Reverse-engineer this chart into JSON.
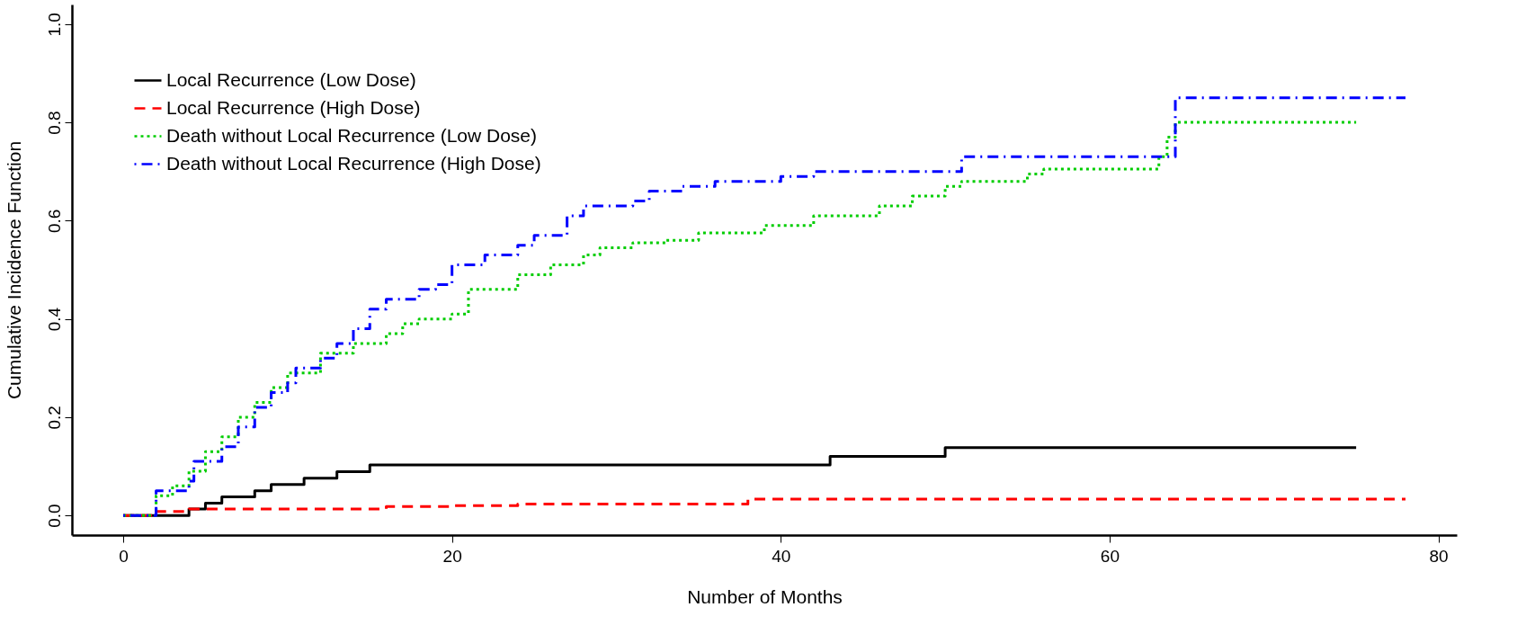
{
  "chart_data": {
    "type": "step",
    "xlabel": "Number of Months",
    "ylabel": "Cumulative Incidence Function",
    "xlim": [
      -3.12,
      81.12
    ],
    "ylim": [
      -0.04,
      1.04
    ],
    "xticks": [
      0,
      20,
      40,
      60,
      80
    ],
    "yticks": [
      {
        "value": 0,
        "label": "0.0"
      },
      0.2,
      0.4,
      0.6,
      0.8,
      {
        "value": 1,
        "label": "1.0"
      }
    ],
    "grid": false,
    "legend": "top left",
    "marker": "none",
    "series": [
      {
        "name": "Local Recurrence (Low Dose)",
        "color": "#000000",
        "line_style": "solid",
        "x": [
          0,
          4,
          5,
          6,
          8,
          9,
          11,
          13,
          15,
          43,
          50,
          75
        ],
        "values": [
          0,
          0.013,
          0.025,
          0.038,
          0.05,
          0.063,
          0.076,
          0.089,
          0.103,
          0.12,
          0.138,
          0.138
        ]
      },
      {
        "name": "Local Recurrence (High Dose)",
        "color": "#ff0000",
        "line_style": "dashed",
        "x": [
          0,
          2,
          4,
          16,
          20,
          24,
          38,
          78
        ],
        "values": [
          0,
          0.008,
          0.013,
          0.018,
          0.02,
          0.023,
          0.033,
          0.033
        ]
      },
      {
        "name": "Death without Local Recurrence (Low Dose)",
        "color": "#00cd00",
        "line_style": "dotted",
        "x": [
          0,
          2,
          3,
          4,
          5,
          6,
          7,
          8,
          9,
          10,
          12,
          14,
          16,
          17,
          18,
          20,
          21,
          24,
          26,
          28,
          29,
          31,
          33,
          35,
          39,
          42,
          46,
          48,
          50,
          51,
          55,
          56,
          63,
          63.5,
          64,
          75
        ],
        "values": [
          0,
          0.04,
          0.06,
          0.09,
          0.13,
          0.16,
          0.2,
          0.23,
          0.26,
          0.29,
          0.33,
          0.35,
          0.37,
          0.39,
          0.4,
          0.41,
          0.46,
          0.49,
          0.51,
          0.53,
          0.545,
          0.555,
          0.56,
          0.575,
          0.59,
          0.61,
          0.63,
          0.65,
          0.67,
          0.68,
          0.695,
          0.705,
          0.73,
          0.77,
          0.8,
          0.8
        ]
      },
      {
        "name": "Death without Local Recurrence (High Dose)",
        "color": "#0000ff",
        "line_style": "dashdot",
        "x": [
          0,
          2,
          4,
          4.3,
          6,
          7,
          8,
          9,
          10,
          10.5,
          12,
          13,
          14,
          15,
          16,
          18,
          19,
          20,
          22,
          24,
          25,
          27,
          28,
          31,
          32,
          34,
          36,
          40,
          42,
          51,
          64,
          78
        ],
        "values": [
          0,
          0.05,
          0.07,
          0.11,
          0.14,
          0.18,
          0.22,
          0.25,
          0.27,
          0.3,
          0.32,
          0.35,
          0.38,
          0.42,
          0.44,
          0.46,
          0.47,
          0.51,
          0.53,
          0.55,
          0.57,
          0.61,
          0.63,
          0.64,
          0.66,
          0.67,
          0.68,
          0.69,
          0.7,
          0.73,
          0.85,
          0.85
        ]
      }
    ]
  }
}
